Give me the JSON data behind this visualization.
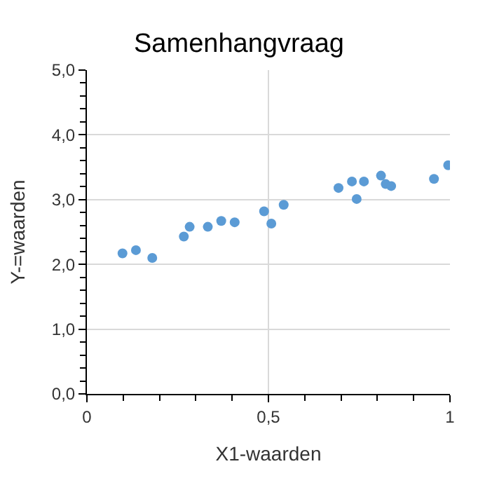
{
  "chart_data": {
    "type": "scatter",
    "title": "Samenhangvraag",
    "xlabel": "X1-waarden",
    "ylabel": "Y-=waarden",
    "x": [
      0.098,
      0.135,
      0.18,
      0.267,
      0.283,
      0.333,
      0.37,
      0.407,
      0.488,
      0.508,
      0.542,
      0.693,
      0.73,
      0.743,
      0.763,
      0.81,
      0.823,
      0.838,
      0.956,
      0.995
    ],
    "series": [
      {
        "color": "#5b9bd5",
        "values": [
          2.17,
          2.22,
          2.1,
          2.43,
          2.58,
          2.58,
          2.67,
          2.65,
          2.82,
          2.63,
          2.92,
          3.18,
          3.28,
          3.01,
          3.28,
          3.37,
          3.24,
          3.21,
          3.32,
          3.53
        ]
      }
    ],
    "xlim": [
      0,
      1
    ],
    "xticks": [
      {
        "value": 0,
        "label": "0"
      },
      {
        "value": 0.5,
        "label": "0,5"
      },
      {
        "value": 1,
        "label": "1"
      }
    ],
    "ylim": [
      0,
      5
    ],
    "yticks": [
      {
        "value": 0,
        "label": "0,0"
      },
      {
        "value": 1,
        "label": "1,0"
      },
      {
        "value": 2,
        "label": "2,0"
      },
      {
        "value": 3,
        "label": "3,0"
      },
      {
        "value": 4,
        "label": "4,0"
      },
      {
        "value": 5,
        "label": "5,0"
      }
    ],
    "grid": true,
    "marker": "circle",
    "legend": false
  }
}
